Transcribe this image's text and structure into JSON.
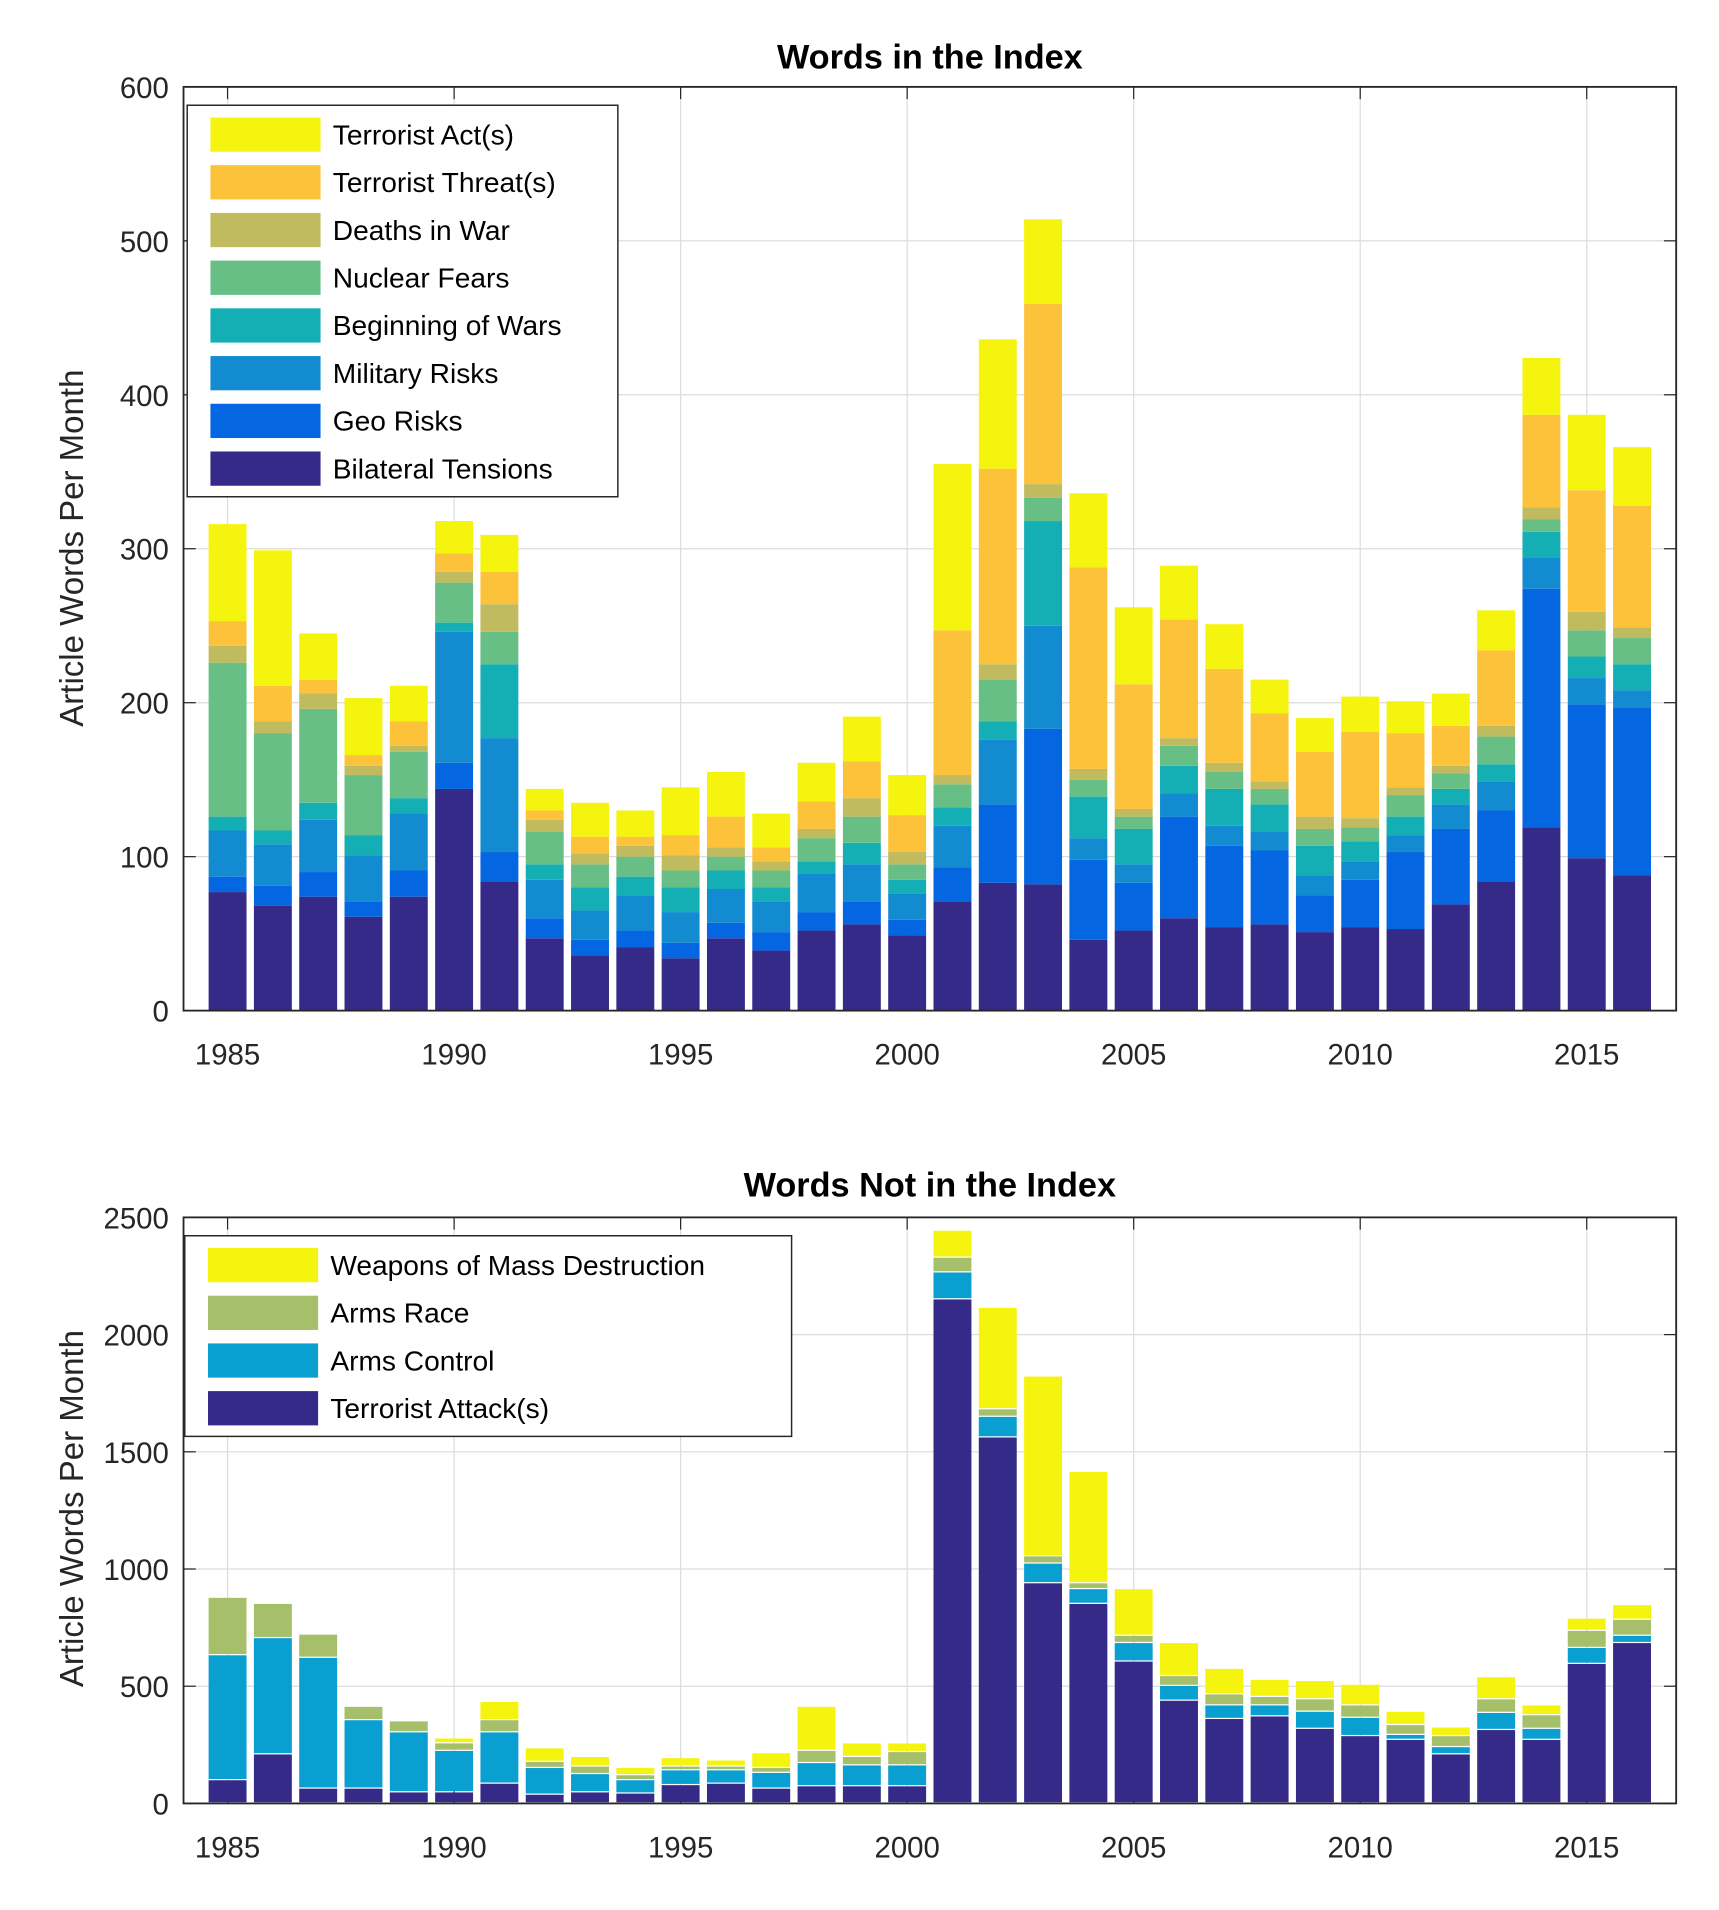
{
  "chart_data": [
    {
      "type": "bar",
      "stacked": true,
      "title": "Words in the Index",
      "xlabel": "",
      "ylabel": "Article Words Per Month",
      "ylim": [
        0,
        600
      ],
      "yticks": [
        "0",
        "100",
        "200",
        "300",
        "400",
        "500",
        "600"
      ],
      "xticks": [
        "1985",
        "1990",
        "1995",
        "2000",
        "2005",
        "2010",
        "2015"
      ],
      "grid": true,
      "legend_position": "top-left",
      "categories": [
        1985,
        1986,
        1987,
        1988,
        1989,
        1990,
        1991,
        1992,
        1993,
        1994,
        1995,
        1996,
        1997,
        1998,
        1999,
        2000,
        2001,
        2002,
        2003,
        2004,
        2005,
        2006,
        2007,
        2008,
        2009,
        2010,
        2011,
        2012,
        2013,
        2014,
        2015,
        2016
      ],
      "series": [
        {
          "name": "Bilateral Tensions",
          "color": "#352a87",
          "values": [
            77,
            68,
            74,
            61,
            74,
            144,
            84,
            47,
            36,
            41,
            34,
            47,
            39,
            52,
            56,
            49,
            71,
            83,
            82,
            46,
            52,
            60,
            54,
            56,
            51,
            54,
            53,
            69,
            84,
            119,
            99,
            88
          ]
        },
        {
          "name": "Geo Risks",
          "color": "#0466e0",
          "values": [
            10,
            13,
            16,
            10,
            17,
            17,
            19,
            13,
            10,
            11,
            10,
            10,
            12,
            12,
            15,
            10,
            22,
            51,
            101,
            52,
            31,
            66,
            53,
            48,
            24,
            31,
            50,
            49,
            46,
            155,
            100,
            109
          ]
        },
        {
          "name": "Military Risks",
          "color": "#138bd0",
          "values": [
            30,
            27,
            34,
            30,
            37,
            85,
            74,
            25,
            19,
            23,
            20,
            22,
            20,
            25,
            24,
            17,
            27,
            42,
            67,
            14,
            12,
            15,
            13,
            12,
            13,
            12,
            11,
            16,
            19,
            20,
            17,
            11
          ]
        },
        {
          "name": "Beginning of Wars",
          "color": "#13afb5",
          "values": [
            9,
            9,
            11,
            13,
            10,
            6,
            48,
            10,
            15,
            12,
            16,
            12,
            9,
            8,
            14,
            9,
            12,
            12,
            68,
            27,
            23,
            18,
            24,
            18,
            19,
            13,
            12,
            10,
            11,
            17,
            14,
            17
          ]
        },
        {
          "name": "Nuclear Fears",
          "color": "#67bf85",
          "values": [
            100,
            63,
            61,
            39,
            30,
            26,
            21,
            21,
            15,
            13,
            11,
            9,
            11,
            15,
            17,
            10,
            15,
            27,
            15,
            11,
            8,
            13,
            11,
            10,
            11,
            9,
            14,
            10,
            18,
            8,
            17,
            17
          ]
        },
        {
          "name": "Deaths in War",
          "color": "#c0bb5e",
          "values": [
            11,
            8,
            10,
            6,
            4,
            7,
            18,
            8,
            7,
            7,
            10,
            6,
            6,
            6,
            12,
            8,
            6,
            10,
            9,
            7,
            5,
            5,
            6,
            5,
            8,
            6,
            5,
            5,
            7,
            8,
            12,
            7
          ]
        },
        {
          "name": "Terrorist Threat(s)",
          "color": "#fcc23a",
          "values": [
            16,
            23,
            9,
            7,
            16,
            12,
            21,
            6,
            11,
            6,
            13,
            20,
            9,
            18,
            24,
            24,
            94,
            127,
            117,
            131,
            81,
            77,
            61,
            44,
            42,
            56,
            35,
            26,
            49,
            60,
            79,
            79
          ]
        },
        {
          "name": "Terrorist Act(s)",
          "color": "#f5f40f",
          "values": [
            63,
            88,
            30,
            37,
            23,
            21,
            24,
            14,
            22,
            17,
            31,
            29,
            22,
            25,
            29,
            26,
            108,
            84,
            55,
            48,
            50,
            35,
            29,
            22,
            22,
            23,
            21,
            21,
            26,
            37,
            49,
            38
          ]
        }
      ]
    },
    {
      "type": "bar",
      "stacked": true,
      "title": "Words Not in the Index",
      "xlabel": "",
      "ylabel": "Article Words Per Month",
      "ylim": [
        0,
        2500
      ],
      "yticks": [
        "0",
        "500",
        "1000",
        "1500",
        "2000",
        "2500"
      ],
      "xticks": [
        "1985",
        "1990",
        "1995",
        "2000",
        "2005",
        "2010",
        "2015"
      ],
      "grid": true,
      "legend_position": "top-left",
      "categories": [
        1985,
        1986,
        1987,
        1988,
        1989,
        1990,
        1991,
        1992,
        1993,
        1994,
        1995,
        1996,
        1997,
        1998,
        1999,
        2000,
        2001,
        2002,
        2003,
        2004,
        2005,
        2006,
        2007,
        2008,
        2009,
        2010,
        2011,
        2012,
        2013,
        2014,
        2015,
        2016
      ],
      "series": [
        {
          "name": "Terrorist Attack(s)",
          "color": "#352a87",
          "values": [
            99,
            209,
            63,
            63,
            47,
            47,
            84,
            37,
            47,
            42,
            78,
            84,
            63,
            73,
            73,
            73,
            2150,
            1561,
            939,
            851,
            605,
            438,
            360,
            371,
            318,
            287,
            271,
            209,
            313,
            271,
            595,
            684
          ]
        },
        {
          "name": "Arms Control",
          "color": "#099fd1",
          "values": [
            533,
            496,
            558,
            292,
            256,
            177,
            219,
            114,
            78,
            57,
            63,
            57,
            67,
            99,
            89,
            89,
            115,
            88,
            84,
            63,
            79,
            63,
            58,
            47,
            73,
            78,
            21,
            31,
            73,
            47,
            68,
            31
          ]
        },
        {
          "name": "Arms Race",
          "color": "#a6bf6a",
          "values": [
            245,
            146,
            99,
            57,
            47,
            32,
            52,
            26,
            32,
            21,
            16,
            16,
            21,
            52,
            36,
            57,
            63,
            32,
            31,
            25,
            31,
            42,
            47,
            36,
            53,
            53,
            42,
            47,
            58,
            58,
            73,
            68
          ]
        },
        {
          "name": "Weapons of Mass Destruction",
          "color": "#f5f40f",
          "values": [
            0,
            0,
            0,
            0,
            0,
            21,
            78,
            58,
            41,
            31,
            36,
            26,
            63,
            188,
            58,
            37,
            115,
            433,
            767,
            475,
            199,
            141,
            109,
            73,
            78,
            88,
            57,
            37,
            94,
            42,
            52,
            63
          ]
        }
      ]
    }
  ]
}
